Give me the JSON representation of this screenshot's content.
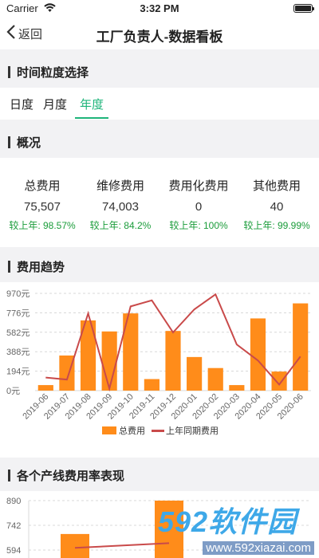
{
  "status_bar": {
    "carrier": "Carrier",
    "time": "3:32 PM"
  },
  "nav": {
    "back_label": "返回",
    "title": "工厂负责人-数据看板"
  },
  "time_granularity": {
    "header": "时间粒度选择",
    "tabs": [
      {
        "label": "日度",
        "active": false
      },
      {
        "label": "月度",
        "active": false
      },
      {
        "label": "年度",
        "active": true
      }
    ]
  },
  "overview": {
    "header": "概况",
    "items": [
      {
        "label": "总费用",
        "value": "75,507",
        "compare": "较上年: 98.57%"
      },
      {
        "label": "维修费用",
        "value": "74,003",
        "compare": "较上年: 84.2%"
      },
      {
        "label": "费用化费用",
        "value": "0",
        "compare": "较上年: 100%"
      },
      {
        "label": "其他费用",
        "value": "40",
        "compare": "较上年: 99.99%"
      }
    ]
  },
  "trend": {
    "header": "费用趋势"
  },
  "product_line": {
    "header": "各个产线费用率表现"
  },
  "colors": {
    "accent": "#1eb47a",
    "bar": "#ff8c1a",
    "line": "#c94a4a",
    "positive": "#1a9c3a"
  },
  "chart_data": [
    {
      "type": "bar",
      "categories": [
        "2019-06",
        "2019-07",
        "2019-08",
        "2019-09",
        "2019-10",
        "2019-11",
        "2019-12",
        "2020-01",
        "2020-02",
        "2020-03",
        "2020-04",
        "2020-05",
        "2020-06"
      ],
      "yticks": [
        "0元",
        "194元",
        "388元",
        "582元",
        "776元",
        "970元"
      ],
      "ylim": [
        0,
        970
      ],
      "series": [
        {
          "name": "总费用",
          "kind": "bar",
          "values": [
            55,
            350,
            700,
            590,
            770,
            115,
            595,
            335,
            225,
            55,
            720,
            190,
            870
          ]
        },
        {
          "name": "上年同期费用",
          "kind": "line",
          "values": [
            130,
            110,
            770,
            20,
            840,
            900,
            580,
            810,
            960,
            460,
            300,
            60,
            340
          ]
        }
      ],
      "grid": true,
      "legend": "bottom"
    },
    {
      "type": "bar",
      "yticks": [
        "594",
        "742",
        "890"
      ],
      "ylim": [
        520,
        890
      ],
      "series": [
        {
          "kind": "bar",
          "values": [
            690,
            890
          ]
        },
        {
          "kind": "line",
          "values": [
            607,
            635
          ]
        }
      ],
      "grid": true
    }
  ]
}
